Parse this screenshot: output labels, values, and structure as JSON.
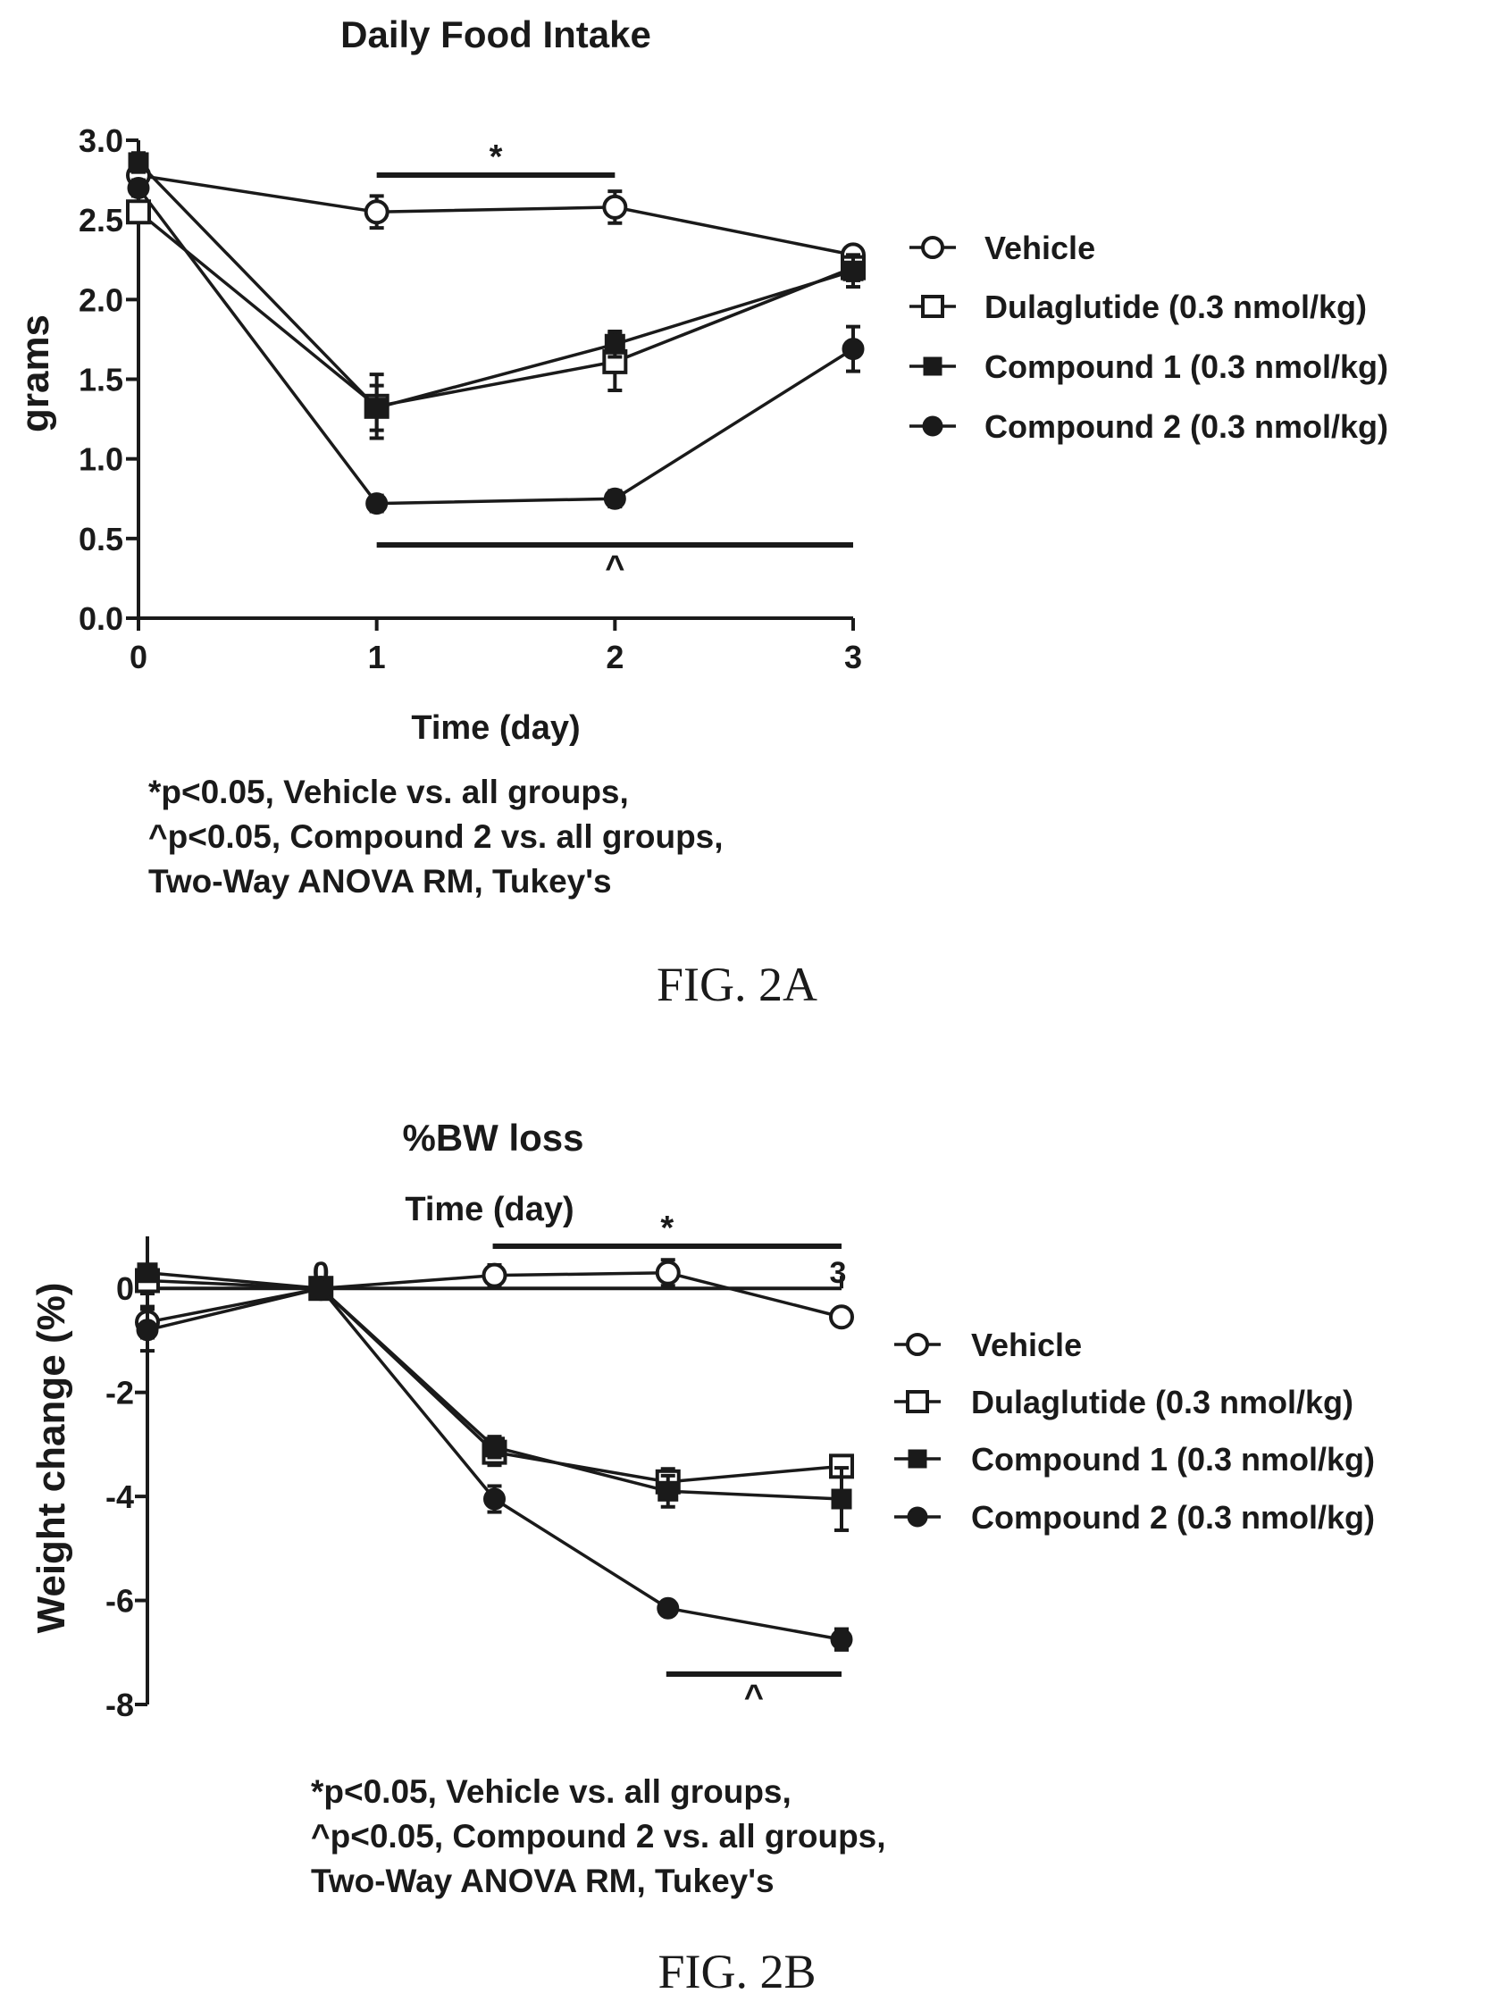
{
  "chart_data": [
    {
      "type": "line",
      "title": "Daily Food Intake",
      "xlabel": "Time (day)",
      "ylabel": "grams",
      "x": [
        0,
        1,
        2,
        3
      ],
      "xticks": [
        "0",
        "1",
        "2",
        "3"
      ],
      "yticks": [
        "0.0",
        "0.5",
        "1.0",
        "1.5",
        "2.0",
        "2.5",
        "3.0"
      ],
      "xlim": [
        0,
        3
      ],
      "ylim": [
        0,
        3
      ],
      "legend_position": "right",
      "series": [
        {
          "name": "Vehicle",
          "marker": "circle-open",
          "values": [
            2.78,
            2.55,
            2.58,
            2.28
          ],
          "errors": [
            0.05,
            0.1,
            0.1,
            0.05
          ]
        },
        {
          "name": "Dulaglutide (0.3 nmol/kg)",
          "marker": "square-open",
          "values": [
            2.55,
            1.33,
            1.61,
            2.2
          ],
          "errors": [
            0.05,
            0.2,
            0.18,
            0.08
          ]
        },
        {
          "name": "Compound 1 (0.3 nmol/kg)",
          "marker": "square-filled",
          "values": [
            2.86,
            1.32,
            1.72,
            2.18
          ],
          "errors": [
            0.06,
            0.14,
            0.08,
            0.1
          ]
        },
        {
          "name": "Compound 2 (0.3 nmol/kg)",
          "marker": "circle-filled",
          "values": [
            2.7,
            0.72,
            0.75,
            1.69
          ],
          "errors": [
            0.05,
            0.05,
            0.05,
            0.14
          ]
        }
      ],
      "annotations": [
        {
          "symbol": "*",
          "x_start": 1,
          "x_end": 2,
          "y": 2.75
        },
        {
          "symbol": "^",
          "x_start": 1,
          "x_end": 3,
          "y": 0.46
        }
      ],
      "footnotes": [
        "*p<0.05, Vehicle vs. all groups,",
        "^p<0.05, Compound 2 vs. all groups,",
        "Two-Way ANOVA RM, Tukey's"
      ],
      "figure_label": "FIG. 2A"
    },
    {
      "type": "line",
      "title": "%BW loss",
      "xlabel": "Time (day)",
      "ylabel": "Weight change (%)",
      "x": [
        -1,
        0,
        1,
        2,
        3
      ],
      "xticks": [
        "0",
        "3"
      ],
      "yticks": [
        "0",
        "-2",
        "-4",
        "-6",
        "-8"
      ],
      "xlim": [
        -1,
        3
      ],
      "ylim": [
        -8,
        1
      ],
      "legend_position": "right",
      "series": [
        {
          "name": "Vehicle",
          "marker": "circle-open",
          "values": [
            -0.65,
            0,
            0.25,
            0.3,
            -0.55
          ],
          "errors": [
            0.3,
            0.05,
            0.2,
            0.25,
            0.1
          ]
        },
        {
          "name": "Dulaglutide (0.3 nmol/kg)",
          "marker": "square-open",
          "values": [
            0.15,
            0,
            -3.15,
            -3.72,
            -3.42
          ],
          "errors": [
            0.25,
            0.05,
            0.25,
            0.25,
            0.2
          ]
        },
        {
          "name": "Compound 1 (0.3 nmol/kg)",
          "marker": "square-filled",
          "values": [
            0.3,
            0,
            -3.05,
            -3.9,
            -4.05
          ],
          "errors": [
            0.15,
            0.05,
            0.2,
            0.3,
            0.6
          ]
        },
        {
          "name": "Compound 2 (0.3 nmol/kg)",
          "marker": "circle-filled",
          "values": [
            -0.8,
            0,
            -4.05,
            -6.15,
            -6.75
          ],
          "errors": [
            0.4,
            0.05,
            0.25,
            0.12,
            0.2
          ]
        }
      ],
      "annotations": [
        {
          "symbol": "*",
          "x_start": 0.99,
          "x_end": 3,
          "y": 0.85
        },
        {
          "symbol": "^",
          "x_start": 1.99,
          "x_end": 3,
          "y": -7.45
        }
      ],
      "footnotes": [
        "*p<0.05, Vehicle vs. all groups,",
        "^p<0.05, Compound 2 vs. all groups,",
        "Two-Way ANOVA RM, Tukey's"
      ],
      "figure_label": "FIG. 2B"
    }
  ]
}
